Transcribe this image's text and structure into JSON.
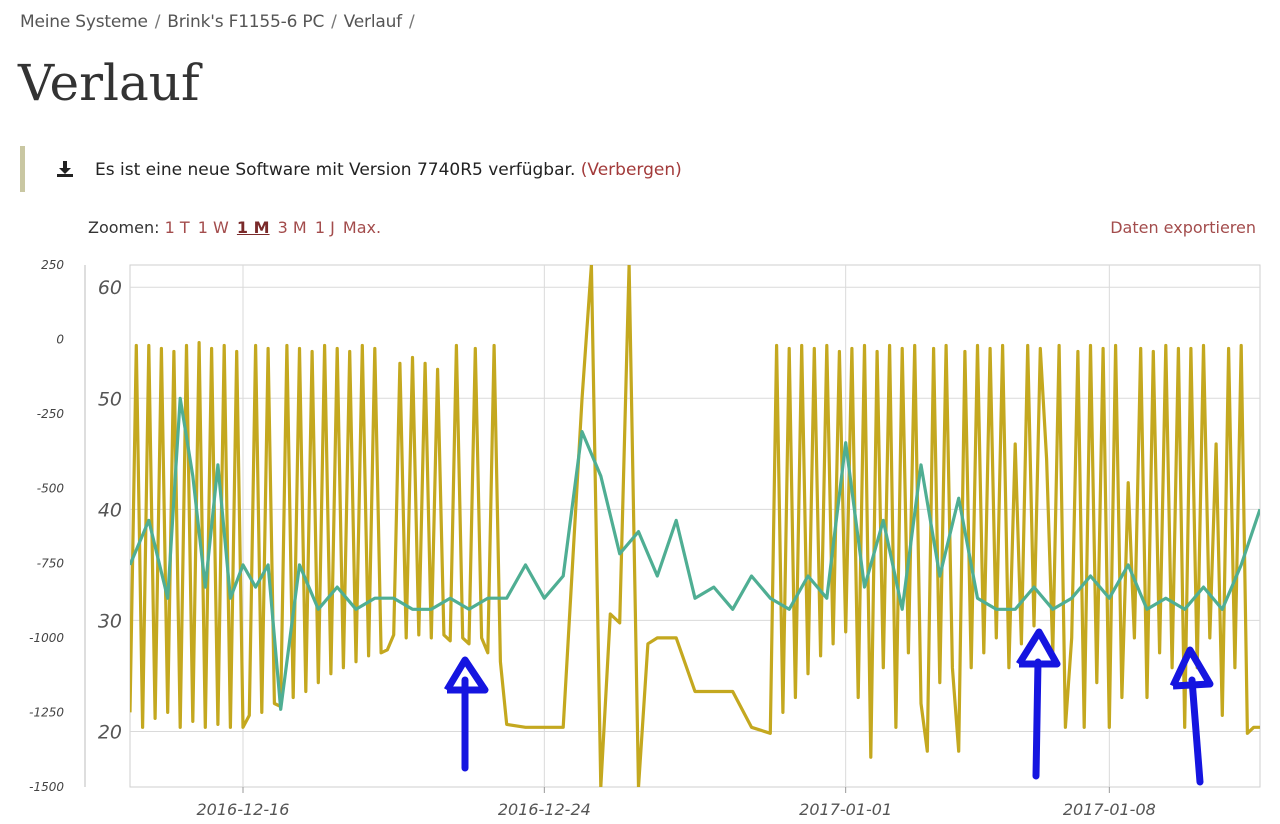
{
  "breadcrumb": {
    "items": [
      "Meine Systeme",
      "Brink's F1155-6 PC",
      "Verlauf"
    ],
    "separator": "/"
  },
  "page_title": "Verlauf",
  "notice": {
    "icon": "download-icon",
    "message": "Es ist eine neue Software mit Version 7740R5 verfügbar.",
    "hide_label": "(Verbergen)"
  },
  "zoom": {
    "label": "Zoomen:",
    "options": [
      "1 T",
      "1 W",
      "1 M",
      "3 M",
      "1 J",
      "Max."
    ],
    "active": "1 M"
  },
  "export_label": "Daten exportieren",
  "colors": {
    "olive_series": "#c4a81f",
    "teal_series": "#4fae93",
    "arrow": "#1515e0",
    "accent": "#a34c4c"
  },
  "chart_data": {
    "type": "line",
    "x_ticks": [
      "2016-12-16",
      "2016-12-24",
      "2017-01-01",
      "2017-01-08"
    ],
    "left_axis_ticks": [
      "250",
      "0",
      "-250",
      "-500",
      "-750",
      "-1000",
      "-1250",
      "-1500"
    ],
    "right_axis_ticks": [
      "60",
      "50",
      "40",
      "30",
      "20"
    ],
    "ylim_left": [
      -1500,
      250
    ],
    "ylim_inner": [
      15,
      62
    ],
    "xlim": [
      "2016-12-13",
      "2017-01-12"
    ],
    "grid": true,
    "series": [
      {
        "axis": "left",
        "color": "#c4a81f",
        "x": [
          "2016-12-13T00:00",
          "2016-12-13T04:00",
          "2016-12-13T08:00",
          "2016-12-13T12:00",
          "2016-12-13T16:00",
          "2016-12-13T20:00",
          "2016-12-14T00:00",
          "2016-12-14T04:00",
          "2016-12-14T08:00",
          "2016-12-14T12:00",
          "2016-12-14T16:00",
          "2016-12-14T20:00",
          "2016-12-15T00:00",
          "2016-12-15T04:00",
          "2016-12-15T08:00",
          "2016-12-15T12:00",
          "2016-12-15T16:00",
          "2016-12-15T20:00",
          "2016-12-16T00:00",
          "2016-12-16T04:00",
          "2016-12-16T08:00",
          "2016-12-16T12:00",
          "2016-12-16T16:00",
          "2016-12-16T20:00",
          "2016-12-17T00:00",
          "2016-12-17T04:00",
          "2016-12-17T08:00",
          "2016-12-17T12:00",
          "2016-12-17T16:00",
          "2016-12-17T20:00",
          "2016-12-18T00:00",
          "2016-12-18T04:00",
          "2016-12-18T08:00",
          "2016-12-18T12:00",
          "2016-12-18T16:00",
          "2016-12-18T20:00",
          "2016-12-19T00:00",
          "2016-12-19T04:00",
          "2016-12-19T08:00",
          "2016-12-19T12:00",
          "2016-12-19T16:00",
          "2016-12-19T20:00",
          "2016-12-20T00:00",
          "2016-12-20T04:00",
          "2016-12-20T08:00",
          "2016-12-20T12:00",
          "2016-12-20T16:00",
          "2016-12-20T20:00",
          "2016-12-21T00:00",
          "2016-12-21T04:00",
          "2016-12-21T08:00",
          "2016-12-21T12:00",
          "2016-12-21T16:00",
          "2016-12-21T20:00",
          "2016-12-22T00:00",
          "2016-12-22T04:00",
          "2016-12-22T08:00",
          "2016-12-22T12:00",
          "2016-12-22T16:00",
          "2016-12-22T20:00",
          "2016-12-23T00:00",
          "2016-12-23T12:00",
          "2016-12-24T00:00",
          "2016-12-24T12:00",
          "2016-12-25T00:00",
          "2016-12-25T06:00",
          "2016-12-25T12:00",
          "2016-12-25T18:00",
          "2016-12-26T00:00",
          "2016-12-26T06:00",
          "2016-12-26T12:00",
          "2016-12-26T18:00",
          "2016-12-27T00:00",
          "2016-12-27T12:00",
          "2016-12-28T00:00",
          "2016-12-28T12:00",
          "2016-12-29T00:00",
          "2016-12-29T12:00",
          "2016-12-30T00:00",
          "2016-12-30T04:00",
          "2016-12-30T08:00",
          "2016-12-30T12:00",
          "2016-12-30T16:00",
          "2016-12-30T20:00",
          "2016-12-31T00:00",
          "2016-12-31T04:00",
          "2016-12-31T08:00",
          "2016-12-31T12:00",
          "2016-12-31T16:00",
          "2016-12-31T20:00",
          "2017-01-01T00:00",
          "2017-01-01T04:00",
          "2017-01-01T08:00",
          "2017-01-01T12:00",
          "2017-01-01T16:00",
          "2017-01-01T20:00",
          "2017-01-02T00:00",
          "2017-01-02T04:00",
          "2017-01-02T08:00",
          "2017-01-02T12:00",
          "2017-01-02T16:00",
          "2017-01-02T20:00",
          "2017-01-03T00:00",
          "2017-01-03T04:00",
          "2017-01-03T08:00",
          "2017-01-03T12:00",
          "2017-01-03T16:00",
          "2017-01-03T20:00",
          "2017-01-04T00:00",
          "2017-01-04T04:00",
          "2017-01-04T08:00",
          "2017-01-04T12:00",
          "2017-01-04T16:00",
          "2017-01-04T20:00",
          "2017-01-05T00:00",
          "2017-01-05T04:00",
          "2017-01-05T08:00",
          "2017-01-05T12:00",
          "2017-01-05T16:00",
          "2017-01-05T20:00",
          "2017-01-06T00:00",
          "2017-01-06T04:00",
          "2017-01-06T08:00",
          "2017-01-06T12:00",
          "2017-01-06T16:00",
          "2017-01-06T20:00",
          "2017-01-07T00:00",
          "2017-01-07T04:00",
          "2017-01-07T08:00",
          "2017-01-07T12:00",
          "2017-01-07T16:00",
          "2017-01-07T20:00",
          "2017-01-08T00:00",
          "2017-01-08T04:00",
          "2017-01-08T08:00",
          "2017-01-08T12:00",
          "2017-01-08T16:00",
          "2017-01-08T20:00",
          "2017-01-09T00:00",
          "2017-01-09T04:00",
          "2017-01-09T08:00",
          "2017-01-09T12:00",
          "2017-01-09T16:00",
          "2017-01-09T20:00",
          "2017-01-10T00:00",
          "2017-01-10T04:00",
          "2017-01-10T08:00",
          "2017-01-10T12:00",
          "2017-01-10T16:00",
          "2017-01-10T20:00",
          "2017-01-11T00:00",
          "2017-01-11T04:00",
          "2017-01-11T08:00",
          "2017-01-11T12:00",
          "2017-01-11T16:00",
          "2017-01-11T20:00",
          "2017-01-12T00:00"
        ],
        "values": [
          -1250,
          -20,
          -1300,
          -20,
          -1270,
          -30,
          -1250,
          -40,
          -1300,
          -20,
          -1280,
          -10,
          -1300,
          -30,
          -1290,
          -20,
          -1300,
          -40,
          -1300,
          -1260,
          -20,
          -1250,
          -30,
          -1220,
          -1230,
          -20,
          -1200,
          -30,
          -1180,
          -40,
          -1150,
          -20,
          -1120,
          -30,
          -1100,
          -40,
          -1080,
          -20,
          -1060,
          -30,
          -1050,
          -1040,
          -990,
          -80,
          -1000,
          -60,
          -990,
          -80,
          -1000,
          -100,
          -990,
          -1010,
          -20,
          -1000,
          -1020,
          -30,
          -1000,
          -1050,
          -20,
          -1080,
          -1290,
          -1300,
          -1300,
          -1300,
          -200,
          250,
          -1500,
          -920,
          -950,
          250,
          -1500,
          -1020,
          -1000,
          -1000,
          -1180,
          -1180,
          -1180,
          -1300,
          -1320,
          -20,
          -1250,
          -30,
          -1200,
          -20,
          -1120,
          -30,
          -1060,
          -20,
          -1020,
          -40,
          -980,
          -30,
          -1200,
          -20,
          -1400,
          -40,
          -1100,
          -20,
          -1300,
          -30,
          -1050,
          -20,
          -1220,
          -1380,
          -30,
          -1150,
          -20,
          -1100,
          -1380,
          -40,
          -1100,
          -20,
          -1050,
          -30,
          -1000,
          -20,
          -1100,
          -350,
          -1020,
          -20,
          -960,
          -30,
          -400,
          -1050,
          -20,
          -1300,
          -1000,
          -40,
          -1300,
          -20,
          -1150,
          -30,
          -1300,
          -20,
          -1200,
          -480,
          -1000,
          -30,
          -1200,
          -40,
          -1050,
          -20,
          -1100,
          -30,
          -1300,
          -30,
          -1100,
          -20,
          -1000,
          -350,
          -1260,
          -30,
          -1100,
          -20,
          -1320,
          -1300,
          -1300
        ]
      },
      {
        "axis": "inner",
        "color": "#4fae93",
        "x": [
          "2016-12-13T00:00",
          "2016-12-13T12:00",
          "2016-12-14T00:00",
          "2016-12-14T08:00",
          "2016-12-14T16:00",
          "2016-12-15T00:00",
          "2016-12-15T08:00",
          "2016-12-15T16:00",
          "2016-12-16T00:00",
          "2016-12-16T08:00",
          "2016-12-16T16:00",
          "2016-12-17T00:00",
          "2016-12-17T12:00",
          "2016-12-18T00:00",
          "2016-12-18T12:00",
          "2016-12-19T00:00",
          "2016-12-19T12:00",
          "2016-12-20T00:00",
          "2016-12-20T12:00",
          "2016-12-21T00:00",
          "2016-12-21T12:00",
          "2016-12-22T00:00",
          "2016-12-22T12:00",
          "2016-12-23T00:00",
          "2016-12-23T12:00",
          "2016-12-24T00:00",
          "2016-12-24T12:00",
          "2016-12-25T00:00",
          "2016-12-25T12:00",
          "2016-12-26T00:00",
          "2016-12-26T12:00",
          "2016-12-27T00:00",
          "2016-12-27T12:00",
          "2016-12-28T00:00",
          "2016-12-28T12:00",
          "2016-12-29T00:00",
          "2016-12-29T12:00",
          "2016-12-30T00:00",
          "2016-12-30T12:00",
          "2016-12-31T00:00",
          "2016-12-31T12:00",
          "2017-01-01T00:00",
          "2017-01-01T12:00",
          "2017-01-02T00:00",
          "2017-01-02T12:00",
          "2017-01-03T00:00",
          "2017-01-03T12:00",
          "2017-01-04T00:00",
          "2017-01-04T12:00",
          "2017-01-05T00:00",
          "2017-01-05T12:00",
          "2017-01-06T00:00",
          "2017-01-06T12:00",
          "2017-01-07T00:00",
          "2017-01-07T12:00",
          "2017-01-08T00:00",
          "2017-01-08T12:00",
          "2017-01-09T00:00",
          "2017-01-09T12:00",
          "2017-01-10T00:00",
          "2017-01-10T12:00",
          "2017-01-11T00:00",
          "2017-01-11T12:00",
          "2017-01-12T00:00"
        ],
        "values": [
          35,
          39,
          32,
          50,
          43,
          33,
          44,
          32,
          35,
          33,
          35,
          22,
          35,
          31,
          33,
          31,
          32,
          32,
          31,
          31,
          32,
          31,
          32,
          32,
          35,
          32,
          34,
          47,
          43,
          36,
          38,
          34,
          39,
          32,
          33,
          31,
          34,
          32,
          31,
          34,
          32,
          46,
          33,
          39,
          31,
          44,
          34,
          41,
          32,
          31,
          31,
          33,
          31,
          32,
          34,
          32,
          35,
          31,
          32,
          31,
          33,
          31,
          35,
          40
        ]
      }
    ]
  }
}
